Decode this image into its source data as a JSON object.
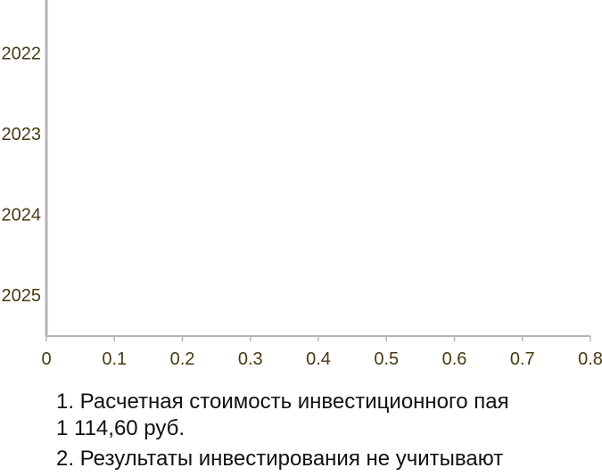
{
  "chart_data": {
    "type": "bar",
    "orientation": "horizontal",
    "categories": [
      "2022",
      "2023",
      "2024",
      "2025"
    ],
    "values": [
      0,
      0,
      0,
      0
    ],
    "xlim": [
      0,
      0.8
    ],
    "xticks": [
      "0",
      "0.1",
      "0.2",
      "0.3",
      "0.4",
      "0.5",
      "0.6",
      "0.7",
      "0.8"
    ],
    "title": "",
    "xlabel": "",
    "ylabel": "",
    "grid": false,
    "colors": {
      "axis": "#b5b5b5",
      "tick_text": "#4a3a12"
    }
  },
  "notes": {
    "note1_line1": "1. Расчетная стоимость инвестиционного пая",
    "note1_line2": "1 114,60 руб.",
    "note2_partial": "2. Результаты инвестирования не учитывают"
  }
}
